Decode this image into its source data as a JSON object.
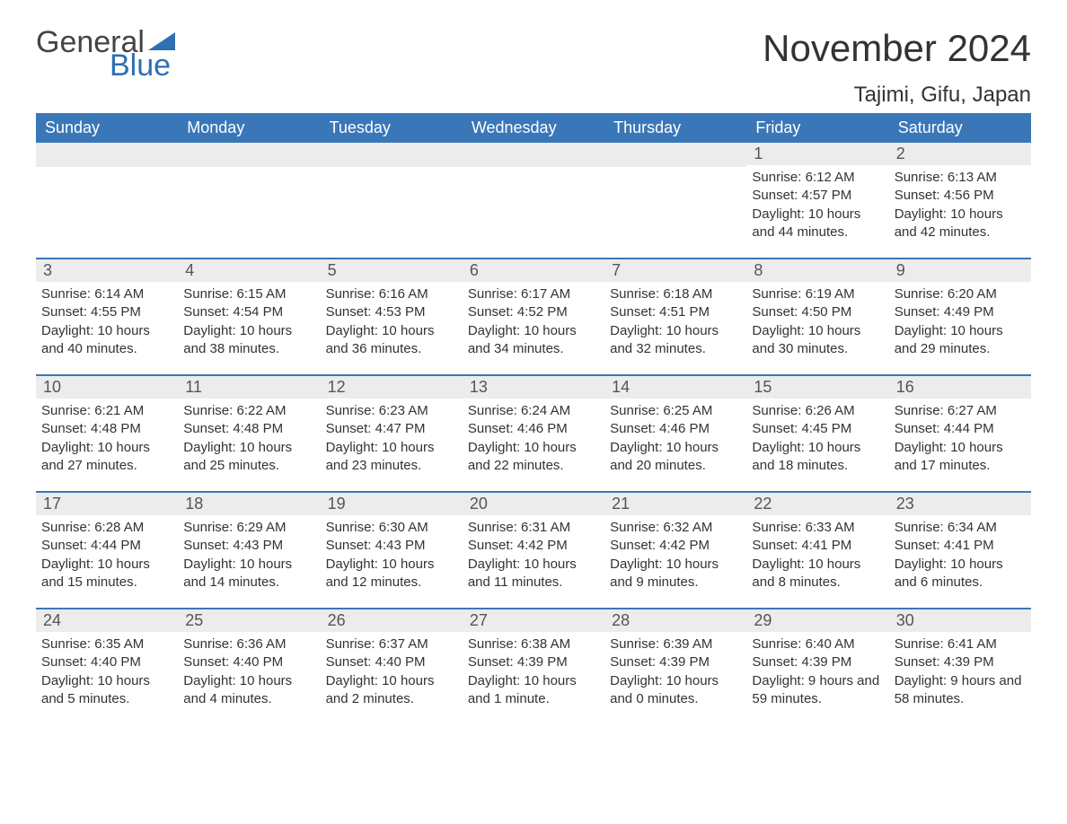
{
  "brand": {
    "general": "General",
    "blue": "Blue",
    "accent": "#2f6fb3"
  },
  "title": "November 2024",
  "location": "Tajimi, Gifu, Japan",
  "colors": {
    "header_bg": "#3a77b8",
    "header_fg": "#ffffff",
    "daynum_bg": "#ececec",
    "rule": "#3a77b8",
    "text": "#333333"
  },
  "weekdays": [
    "Sunday",
    "Monday",
    "Tuesday",
    "Wednesday",
    "Thursday",
    "Friday",
    "Saturday"
  ],
  "weeks": [
    [
      null,
      null,
      null,
      null,
      null,
      {
        "n": "1",
        "sr": "Sunrise: 6:12 AM",
        "ss": "Sunset: 4:57 PM",
        "dl": "Daylight: 10 hours and 44 minutes."
      },
      {
        "n": "2",
        "sr": "Sunrise: 6:13 AM",
        "ss": "Sunset: 4:56 PM",
        "dl": "Daylight: 10 hours and 42 minutes."
      }
    ],
    [
      {
        "n": "3",
        "sr": "Sunrise: 6:14 AM",
        "ss": "Sunset: 4:55 PM",
        "dl": "Daylight: 10 hours and 40 minutes."
      },
      {
        "n": "4",
        "sr": "Sunrise: 6:15 AM",
        "ss": "Sunset: 4:54 PM",
        "dl": "Daylight: 10 hours and 38 minutes."
      },
      {
        "n": "5",
        "sr": "Sunrise: 6:16 AM",
        "ss": "Sunset: 4:53 PM",
        "dl": "Daylight: 10 hours and 36 minutes."
      },
      {
        "n": "6",
        "sr": "Sunrise: 6:17 AM",
        "ss": "Sunset: 4:52 PM",
        "dl": "Daylight: 10 hours and 34 minutes."
      },
      {
        "n": "7",
        "sr": "Sunrise: 6:18 AM",
        "ss": "Sunset: 4:51 PM",
        "dl": "Daylight: 10 hours and 32 minutes."
      },
      {
        "n": "8",
        "sr": "Sunrise: 6:19 AM",
        "ss": "Sunset: 4:50 PM",
        "dl": "Daylight: 10 hours and 30 minutes."
      },
      {
        "n": "9",
        "sr": "Sunrise: 6:20 AM",
        "ss": "Sunset: 4:49 PM",
        "dl": "Daylight: 10 hours and 29 minutes."
      }
    ],
    [
      {
        "n": "10",
        "sr": "Sunrise: 6:21 AM",
        "ss": "Sunset: 4:48 PM",
        "dl": "Daylight: 10 hours and 27 minutes."
      },
      {
        "n": "11",
        "sr": "Sunrise: 6:22 AM",
        "ss": "Sunset: 4:48 PM",
        "dl": "Daylight: 10 hours and 25 minutes."
      },
      {
        "n": "12",
        "sr": "Sunrise: 6:23 AM",
        "ss": "Sunset: 4:47 PM",
        "dl": "Daylight: 10 hours and 23 minutes."
      },
      {
        "n": "13",
        "sr": "Sunrise: 6:24 AM",
        "ss": "Sunset: 4:46 PM",
        "dl": "Daylight: 10 hours and 22 minutes."
      },
      {
        "n": "14",
        "sr": "Sunrise: 6:25 AM",
        "ss": "Sunset: 4:46 PM",
        "dl": "Daylight: 10 hours and 20 minutes."
      },
      {
        "n": "15",
        "sr": "Sunrise: 6:26 AM",
        "ss": "Sunset: 4:45 PM",
        "dl": "Daylight: 10 hours and 18 minutes."
      },
      {
        "n": "16",
        "sr": "Sunrise: 6:27 AM",
        "ss": "Sunset: 4:44 PM",
        "dl": "Daylight: 10 hours and 17 minutes."
      }
    ],
    [
      {
        "n": "17",
        "sr": "Sunrise: 6:28 AM",
        "ss": "Sunset: 4:44 PM",
        "dl": "Daylight: 10 hours and 15 minutes."
      },
      {
        "n": "18",
        "sr": "Sunrise: 6:29 AM",
        "ss": "Sunset: 4:43 PM",
        "dl": "Daylight: 10 hours and 14 minutes."
      },
      {
        "n": "19",
        "sr": "Sunrise: 6:30 AM",
        "ss": "Sunset: 4:43 PM",
        "dl": "Daylight: 10 hours and 12 minutes."
      },
      {
        "n": "20",
        "sr": "Sunrise: 6:31 AM",
        "ss": "Sunset: 4:42 PM",
        "dl": "Daylight: 10 hours and 11 minutes."
      },
      {
        "n": "21",
        "sr": "Sunrise: 6:32 AM",
        "ss": "Sunset: 4:42 PM",
        "dl": "Daylight: 10 hours and 9 minutes."
      },
      {
        "n": "22",
        "sr": "Sunrise: 6:33 AM",
        "ss": "Sunset: 4:41 PM",
        "dl": "Daylight: 10 hours and 8 minutes."
      },
      {
        "n": "23",
        "sr": "Sunrise: 6:34 AM",
        "ss": "Sunset: 4:41 PM",
        "dl": "Daylight: 10 hours and 6 minutes."
      }
    ],
    [
      {
        "n": "24",
        "sr": "Sunrise: 6:35 AM",
        "ss": "Sunset: 4:40 PM",
        "dl": "Daylight: 10 hours and 5 minutes."
      },
      {
        "n": "25",
        "sr": "Sunrise: 6:36 AM",
        "ss": "Sunset: 4:40 PM",
        "dl": "Daylight: 10 hours and 4 minutes."
      },
      {
        "n": "26",
        "sr": "Sunrise: 6:37 AM",
        "ss": "Sunset: 4:40 PM",
        "dl": "Daylight: 10 hours and 2 minutes."
      },
      {
        "n": "27",
        "sr": "Sunrise: 6:38 AM",
        "ss": "Sunset: 4:39 PM",
        "dl": "Daylight: 10 hours and 1 minute."
      },
      {
        "n": "28",
        "sr": "Sunrise: 6:39 AM",
        "ss": "Sunset: 4:39 PM",
        "dl": "Daylight: 10 hours and 0 minutes."
      },
      {
        "n": "29",
        "sr": "Sunrise: 6:40 AM",
        "ss": "Sunset: 4:39 PM",
        "dl": "Daylight: 9 hours and 59 minutes."
      },
      {
        "n": "30",
        "sr": "Sunrise: 6:41 AM",
        "ss": "Sunset: 4:39 PM",
        "dl": "Daylight: 9 hours and 58 minutes."
      }
    ]
  ]
}
